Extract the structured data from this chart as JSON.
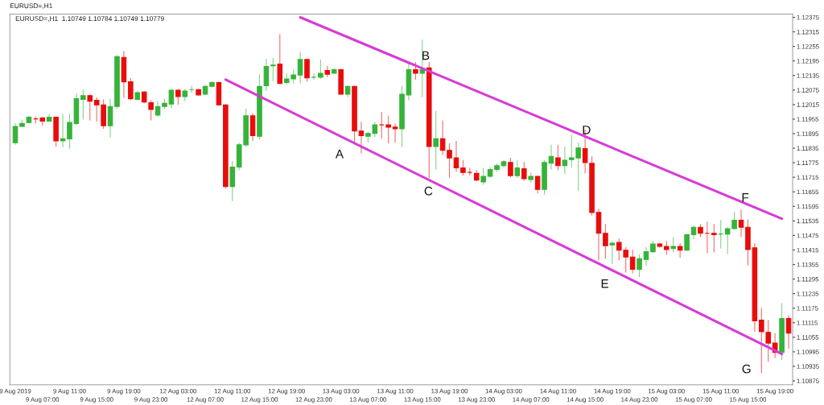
{
  "chart_data": {
    "type": "candlestick",
    "title": "EURUSD=,H1",
    "subtitle": "EURUSD=,H1  1.10749 1.10784 1.10749 1.10779",
    "categories": [
      "9 Aug 2019",
      null,
      null,
      null,
      "9 Aug 07:00",
      null,
      null,
      null,
      "9 Aug 11:00",
      null,
      null,
      null,
      "9 Aug 15:00",
      null,
      null,
      null,
      "9 Aug 19:00",
      null,
      null,
      null,
      "9 Aug 23:00",
      null,
      null,
      null,
      "12 Aug 03:00",
      null,
      null,
      null,
      "12 Aug 07:00",
      null,
      null,
      null,
      "12 Aug 11:00",
      null,
      null,
      null,
      "12 Aug 15:00",
      null,
      null,
      null,
      "12 Aug 19:00",
      null,
      null,
      null,
      "12 Aug 23:00",
      null,
      null,
      null,
      "13 Aug 03:00",
      null,
      null,
      null,
      "13 Aug 07:00",
      null,
      null,
      null,
      "13 Aug 11:00",
      null,
      null,
      null,
      "13 Aug 15:00",
      null,
      null,
      null,
      "13 Aug 19:00",
      null,
      null,
      null,
      "13 Aug 23:00",
      null,
      null,
      null,
      "14 Aug 03:00",
      null,
      null,
      null,
      "14 Aug 07:00",
      null,
      null,
      null,
      "14 Aug 11:00",
      null,
      null,
      null,
      "14 Aug 15:00",
      null,
      null,
      null,
      "14 Aug 19:00",
      null,
      null,
      null,
      "14 Aug 23:00",
      null,
      null,
      null,
      "15 Aug 03:00",
      null,
      null,
      null,
      "15 Aug 07:00",
      null,
      null,
      null,
      "15 Aug 11:00",
      null,
      null,
      null,
      "15 Aug 15:00",
      null,
      null,
      null,
      "15 Aug 19:00",
      null,
      null
    ],
    "ohlc": [
      [
        1.11858,
        1.11937,
        1.11849,
        1.11925
      ],
      [
        1.11925,
        1.11953,
        1.11922,
        1.11937
      ],
      [
        1.11941,
        1.11969,
        1.11937,
        1.11963
      ],
      [
        1.11956,
        1.11966,
        1.11937,
        1.11956
      ],
      [
        1.1196,
        1.11966,
        1.11928,
        1.11947
      ],
      [
        1.11947,
        1.11976,
        1.11944,
        1.11963
      ],
      [
        1.11963,
        1.11966,
        1.11842,
        1.11865
      ],
      [
        1.11865,
        1.11976,
        1.11839,
        1.11874
      ],
      [
        1.11874,
        1.11976,
        1.11833,
        1.11941
      ],
      [
        1.11937,
        1.12061,
        1.11931,
        1.12039
      ],
      [
        1.12036,
        1.12077,
        1.11953,
        1.12052
      ],
      [
        1.12052,
        1.12058,
        1.1195,
        1.12029
      ],
      [
        1.12033,
        1.12045,
        1.11944,
        1.12014
      ],
      [
        1.12014,
        1.12036,
        1.11915,
        1.11928
      ],
      [
        1.11928,
        1.12039,
        1.1188,
        1.12007
      ],
      [
        1.12007,
        1.1222,
        1.11998,
        1.12213
      ],
      [
        1.1221,
        1.12236,
        1.12042,
        1.12109
      ],
      [
        1.12109,
        1.12125,
        1.12033,
        1.12039
      ],
      [
        1.12036,
        1.12071,
        1.12033,
        1.12064
      ],
      [
        1.12067,
        1.12071,
        1.1202,
        1.12026
      ],
      [
        1.12023,
        1.12033,
        1.1195,
        1.11995
      ],
      [
        1.11972,
        1.12029,
        1.11966,
        1.12007
      ],
      [
        1.12007,
        1.12039,
        1.11998,
        1.1202
      ],
      [
        1.12017,
        1.1208,
        1.12001,
        1.12074
      ],
      [
        1.12074,
        1.1208,
        1.12014,
        1.12048
      ],
      [
        1.12048,
        1.1208,
        1.12029,
        1.12071
      ],
      [
        1.12077,
        1.12093,
        1.12064,
        1.12077
      ],
      [
        1.12077,
        1.1208,
        1.12052,
        1.12055
      ],
      [
        1.12058,
        1.12096,
        1.12055,
        1.1209
      ],
      [
        1.1209,
        1.12112,
        1.12086,
        1.12106
      ],
      [
        1.12106,
        1.12109,
        1.1201,
        1.12014
      ],
      [
        1.12014,
        1.12017,
        1.11668,
        1.11677
      ],
      [
        1.11677,
        1.11782,
        1.11617,
        1.11757
      ],
      [
        1.11757,
        1.11858,
        1.11744,
        1.11849
      ],
      [
        1.11849,
        1.11998,
        1.11839,
        1.11969
      ],
      [
        1.11969,
        1.11979,
        1.11865,
        1.11887
      ],
      [
        1.11884,
        1.1214,
        1.11871,
        1.1209
      ],
      [
        1.12093,
        1.12204,
        1.12071,
        1.12172
      ],
      [
        1.12175,
        1.12207,
        1.12112,
        1.12178
      ],
      [
        1.12182,
        1.12305,
        1.12099,
        1.12102
      ],
      [
        1.12106,
        1.12144,
        1.12096,
        1.12121
      ],
      [
        1.12121,
        1.12159,
        1.12102,
        1.12137
      ],
      [
        1.12137,
        1.12232,
        1.12102,
        1.12201
      ],
      [
        1.12201,
        1.12204,
        1.12109,
        1.12125
      ],
      [
        1.12128,
        1.12144,
        1.12118,
        1.12128
      ],
      [
        1.12128,
        1.12201,
        1.12121,
        1.12144
      ],
      [
        1.12156,
        1.12175,
        1.12128,
        1.1214
      ],
      [
        1.12144,
        1.12166,
        1.12144,
        1.12159
      ],
      [
        1.12159,
        1.12163,
        1.12055,
        1.12058
      ],
      [
        1.12058,
        1.12093,
        1.12045,
        1.1209
      ],
      [
        1.1209,
        1.12093,
        1.11858,
        1.11906
      ],
      [
        1.11906,
        1.11944,
        1.11814,
        1.11887
      ],
      [
        1.11884,
        1.11903,
        1.11858,
        1.11896
      ],
      [
        1.11896,
        1.11944,
        1.1188,
        1.11931
      ],
      [
        1.11931,
        1.11985,
        1.11874,
        1.11931
      ],
      [
        1.11931,
        1.11969,
        1.11855,
        1.11922
      ],
      [
        1.11922,
        1.11937,
        1.11858,
        1.11915
      ],
      [
        1.11915,
        1.12093,
        1.11839,
        1.12058
      ],
      [
        1.12055,
        1.12188,
        1.12033,
        1.12159
      ],
      [
        1.12159,
        1.12191,
        1.12118,
        1.12144
      ],
      [
        1.12144,
        1.12283,
        1.12045,
        1.12159
      ],
      [
        1.12166,
        1.12191,
        1.11712,
        1.11842
      ],
      [
        1.11842,
        1.11988,
        1.11747,
        1.11874
      ],
      [
        1.11874,
        1.1195,
        1.11807,
        1.11826
      ],
      [
        1.11826,
        1.11855,
        1.11712,
        1.11795
      ],
      [
        1.11795,
        1.11865,
        1.11738,
        1.11754
      ],
      [
        1.11754,
        1.11785,
        1.11722,
        1.11735
      ],
      [
        1.11735,
        1.11754,
        1.11722,
        1.11735
      ],
      [
        1.11731,
        1.11744,
        1.117,
        1.11703
      ],
      [
        1.11696,
        1.11754,
        1.11684,
        1.11719
      ],
      [
        1.11719,
        1.11757,
        1.11712,
        1.11747
      ],
      [
        1.11747,
        1.11773,
        1.11738,
        1.11763
      ],
      [
        1.11763,
        1.11785,
        1.11754,
        1.11779
      ],
      [
        1.11776,
        1.11795,
        1.11715,
        1.11722
      ],
      [
        1.11722,
        1.11785,
        1.11712,
        1.11754
      ],
      [
        1.1175,
        1.11779,
        1.117,
        1.11709
      ],
      [
        1.11706,
        1.11735,
        1.11693,
        1.11719
      ],
      [
        1.11719,
        1.11722,
        1.11649,
        1.11665
      ],
      [
        1.11665,
        1.11785,
        1.11643,
        1.11776
      ],
      [
        1.11773,
        1.11849,
        1.11747,
        1.11801
      ],
      [
        1.11795,
        1.11849,
        1.11744,
        1.11763
      ],
      [
        1.11763,
        1.11842,
        1.11728,
        1.11785
      ],
      [
        1.11788,
        1.1189,
        1.11754,
        1.11795
      ],
      [
        1.11795,
        1.11858,
        1.11658,
        1.11836
      ],
      [
        1.11833,
        1.11912,
        1.11731,
        1.11776
      ],
      [
        1.11773,
        1.11801,
        1.11557,
        1.1157
      ],
      [
        1.1157,
        1.11585,
        1.11373,
        1.11484
      ],
      [
        1.11484,
        1.11522,
        1.11379,
        1.11433
      ],
      [
        1.11436,
        1.11452,
        1.11357,
        1.11443
      ],
      [
        1.11446,
        1.11462,
        1.11373,
        1.11414
      ],
      [
        1.11414,
        1.11427,
        1.11322,
        1.11386
      ],
      [
        1.11386,
        1.11417,
        1.11319,
        1.11335
      ],
      [
        1.11335,
        1.11398,
        1.11303,
        1.11379
      ],
      [
        1.11376,
        1.11427,
        1.11351,
        1.11408
      ],
      [
        1.11408,
        1.11452,
        1.11405,
        1.1144
      ],
      [
        1.1144,
        1.11446,
        1.11424,
        1.1143
      ],
      [
        1.1143,
        1.11452,
        1.11395,
        1.11417
      ],
      [
        1.11421,
        1.11468,
        1.11405,
        1.1143
      ],
      [
        1.1143,
        1.11443,
        1.11383,
        1.11414
      ],
      [
        1.11414,
        1.11484,
        1.11411,
        1.11478
      ],
      [
        1.11478,
        1.11516,
        1.11459,
        1.11509
      ],
      [
        1.11509,
        1.11522,
        1.11468,
        1.11484
      ],
      [
        1.11484,
        1.11532,
        1.11402,
        1.11484
      ],
      [
        1.11484,
        1.11522,
        1.11405,
        1.11478
      ],
      [
        1.11481,
        1.11538,
        1.11421,
        1.11481
      ],
      [
        1.11481,
        1.11509,
        1.11398,
        1.11503
      ],
      [
        1.11503,
        1.11573,
        1.115,
        1.11538
      ],
      [
        1.11538,
        1.11582,
        1.11468,
        1.11509
      ],
      [
        1.11509,
        1.11541,
        1.11351,
        1.11417
      ],
      [
        1.11424,
        1.11443,
        1.11078,
        1.11123
      ],
      [
        1.11126,
        1.11176,
        1.10907,
        1.11078
      ],
      [
        1.11075,
        1.11126,
        1.10954,
        1.11031
      ],
      [
        1.11031,
        1.11072,
        1.1097,
        1.10992
      ],
      [
        1.10992,
        1.11195,
        1.10961,
        1.11132
      ],
      [
        1.11132,
        1.11145,
        1.11008,
        1.11072
      ]
    ],
    "colors": [
      "#35b33a",
      "#35b33a",
      "#35b33a",
      "#e80c0c",
      "#e80c0c",
      "#35b33a",
      "#e80c0c",
      "#35b33a",
      "#35b33a",
      "#35b33a",
      "#35b33a",
      "#e80c0c",
      "#e80c0c",
      "#e80c0c",
      "#35b33a",
      "#35b33a",
      "#e80c0c",
      "#e80c0c",
      "#35b33a",
      "#e80c0c",
      "#e80c0c",
      "#35b33a",
      "#35b33a",
      "#35b33a",
      "#e80c0c",
      "#35b33a",
      "#35b33a",
      "#e80c0c",
      "#35b33a",
      "#35b33a",
      "#e80c0c",
      "#e80c0c",
      "#35b33a",
      "#35b33a",
      "#35b33a",
      "#e80c0c",
      "#35b33a",
      "#35b33a",
      "#35b33a",
      "#e80c0c",
      "#35b33a",
      "#35b33a",
      "#35b33a",
      "#e80c0c",
      "#35b33a",
      "#35b33a",
      "#e80c0c",
      "#35b33a",
      "#e80c0c",
      "#35b33a",
      "#e80c0c",
      "#e80c0c",
      "#35b33a",
      "#35b33a",
      "#e80c0c",
      "#e80c0c",
      "#e80c0c",
      "#35b33a",
      "#35b33a",
      "#e80c0c",
      "#35b33a",
      "#e80c0c",
      "#35b33a",
      "#e80c0c",
      "#e80c0c",
      "#e80c0c",
      "#e80c0c",
      "#e80c0c",
      "#e80c0c",
      "#35b33a",
      "#35b33a",
      "#35b33a",
      "#35b33a",
      "#e80c0c",
      "#35b33a",
      "#e80c0c",
      "#35b33a",
      "#e80c0c",
      "#35b33a",
      "#35b33a",
      "#e80c0c",
      "#35b33a",
      "#35b33a",
      "#35b33a",
      "#e80c0c",
      "#e80c0c",
      "#e80c0c",
      "#e80c0c",
      "#35b33a",
      "#e80c0c",
      "#e80c0c",
      "#e80c0c",
      "#35b33a",
      "#35b33a",
      "#35b33a",
      "#e80c0c",
      "#e80c0c",
      "#35b33a",
      "#e80c0c",
      "#35b33a",
      "#35b33a",
      "#e80c0c",
      "#e80c0c",
      "#e80c0c",
      "#35b33a",
      "#35b33a",
      "#35b33a",
      "#e80c0c",
      "#e80c0c",
      "#e80c0c",
      "#e80c0c",
      "#e80c0c",
      "#e80c0c",
      "#35b33a",
      "#e80c0c"
    ],
    "series": [
      {
        "type": "line",
        "color": "#d63cd6",
        "values": [
          null,
          null,
          null,
          null,
          null,
          null,
          null,
          null,
          null,
          null,
          null,
          null,
          null,
          null,
          null,
          null,
          null,
          null,
          null,
          null,
          null,
          null,
          null,
          null,
          null,
          null,
          null,
          null,
          null,
          null,
          null,
          null,
          null,
          null,
          null,
          null,
          null,
          null,
          null,
          null,
          null,
          null,
          1.12375,
          null,
          null,
          null,
          null,
          null,
          null,
          null,
          null,
          null,
          null,
          null,
          null,
          null,
          null,
          null,
          null,
          null,
          null,
          null,
          null,
          null,
          null,
          null,
          null,
          null,
          null,
          null,
          null,
          null,
          null,
          null,
          null,
          null,
          null,
          null,
          null,
          null,
          null,
          null,
          null,
          null,
          null,
          null,
          null,
          null,
          null,
          null,
          null,
          null,
          null,
          null,
          null,
          null,
          null,
          null,
          null,
          null,
          null,
          null,
          null,
          null,
          null,
          null,
          null,
          null,
          null,
          null,
          null,
          null,
          null,
          1.11544,
          null
        ]
      },
      {
        "type": "line",
        "color": "#d63cd6",
        "values": [
          null,
          null,
          null,
          null,
          null,
          null,
          null,
          null,
          null,
          null,
          null,
          null,
          null,
          null,
          null,
          null,
          null,
          null,
          null,
          null,
          null,
          null,
          null,
          null,
          null,
          null,
          null,
          null,
          null,
          null,
          null,
          1.12118,
          null,
          null,
          null,
          null,
          null,
          null,
          null,
          null,
          null,
          null,
          null,
          null,
          null,
          null,
          null,
          null,
          null,
          null,
          null,
          null,
          null,
          null,
          null,
          null,
          null,
          null,
          null,
          null,
          null,
          null,
          null,
          null,
          null,
          null,
          null,
          null,
          null,
          null,
          null,
          null,
          null,
          null,
          null,
          null,
          null,
          null,
          null,
          null,
          null,
          null,
          null,
          null,
          null,
          null,
          null,
          null,
          null,
          null,
          null,
          null,
          null,
          null,
          null,
          null,
          null,
          null,
          null,
          null,
          null,
          null,
          null,
          null,
          null,
          null,
          null,
          null,
          null,
          null,
          null,
          null,
          null,
          1.10986,
          null
        ]
      }
    ],
    "annotations": [
      "A",
      {
        "text": "B",
        "y": 1.12213
      },
      "C",
      {
        "text": "D",
        "y": 1.11906
      },
      "E",
      {
        "text": "F",
        "y": 1.11627
      },
      "G"
    ],
    "ylim": [
      1.10859,
      1.12388
    ],
    "yticks": [
      1.12375,
      1.12315,
      1.12255,
      1.12195,
      1.12135,
      1.12075,
      1.12015,
      1.11955,
      1.11895,
      1.11835,
      1.11775,
      1.11715,
      1.11655,
      1.11595,
      1.11535,
      1.11475,
      1.11415,
      1.11355,
      1.11295,
      1.11235,
      1.11175,
      1.11115,
      1.11055,
      1.10995,
      1.10935,
      1.10875
    ],
    "grid": false,
    "legend": false
  }
}
